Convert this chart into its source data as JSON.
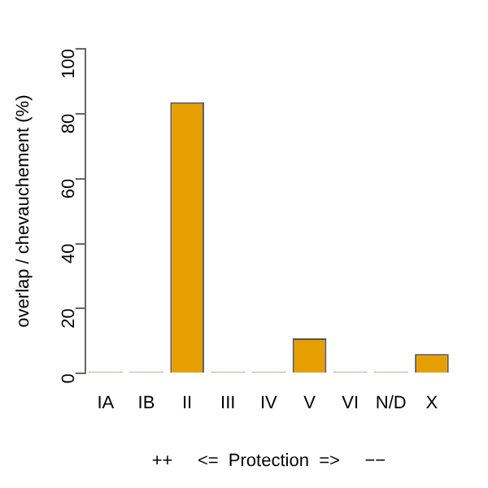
{
  "chart_data": {
    "type": "bar",
    "xlabel": "++     <=  Protection  =>     −−",
    "ylabel": "overlap / chevauchement (%)",
    "categories": [
      "IA",
      "IB",
      "II",
      "III",
      "IV",
      "V",
      "VI",
      "N/D",
      "X"
    ],
    "values": [
      0,
      0,
      83.5,
      0,
      0,
      10.8,
      0,
      0,
      6
    ],
    "color": "#e69f00",
    "ylim": [
      0,
      100
    ],
    "yticks": [
      0,
      20,
      40,
      60,
      80,
      100
    ],
    "grid": false,
    "legend": false
  }
}
